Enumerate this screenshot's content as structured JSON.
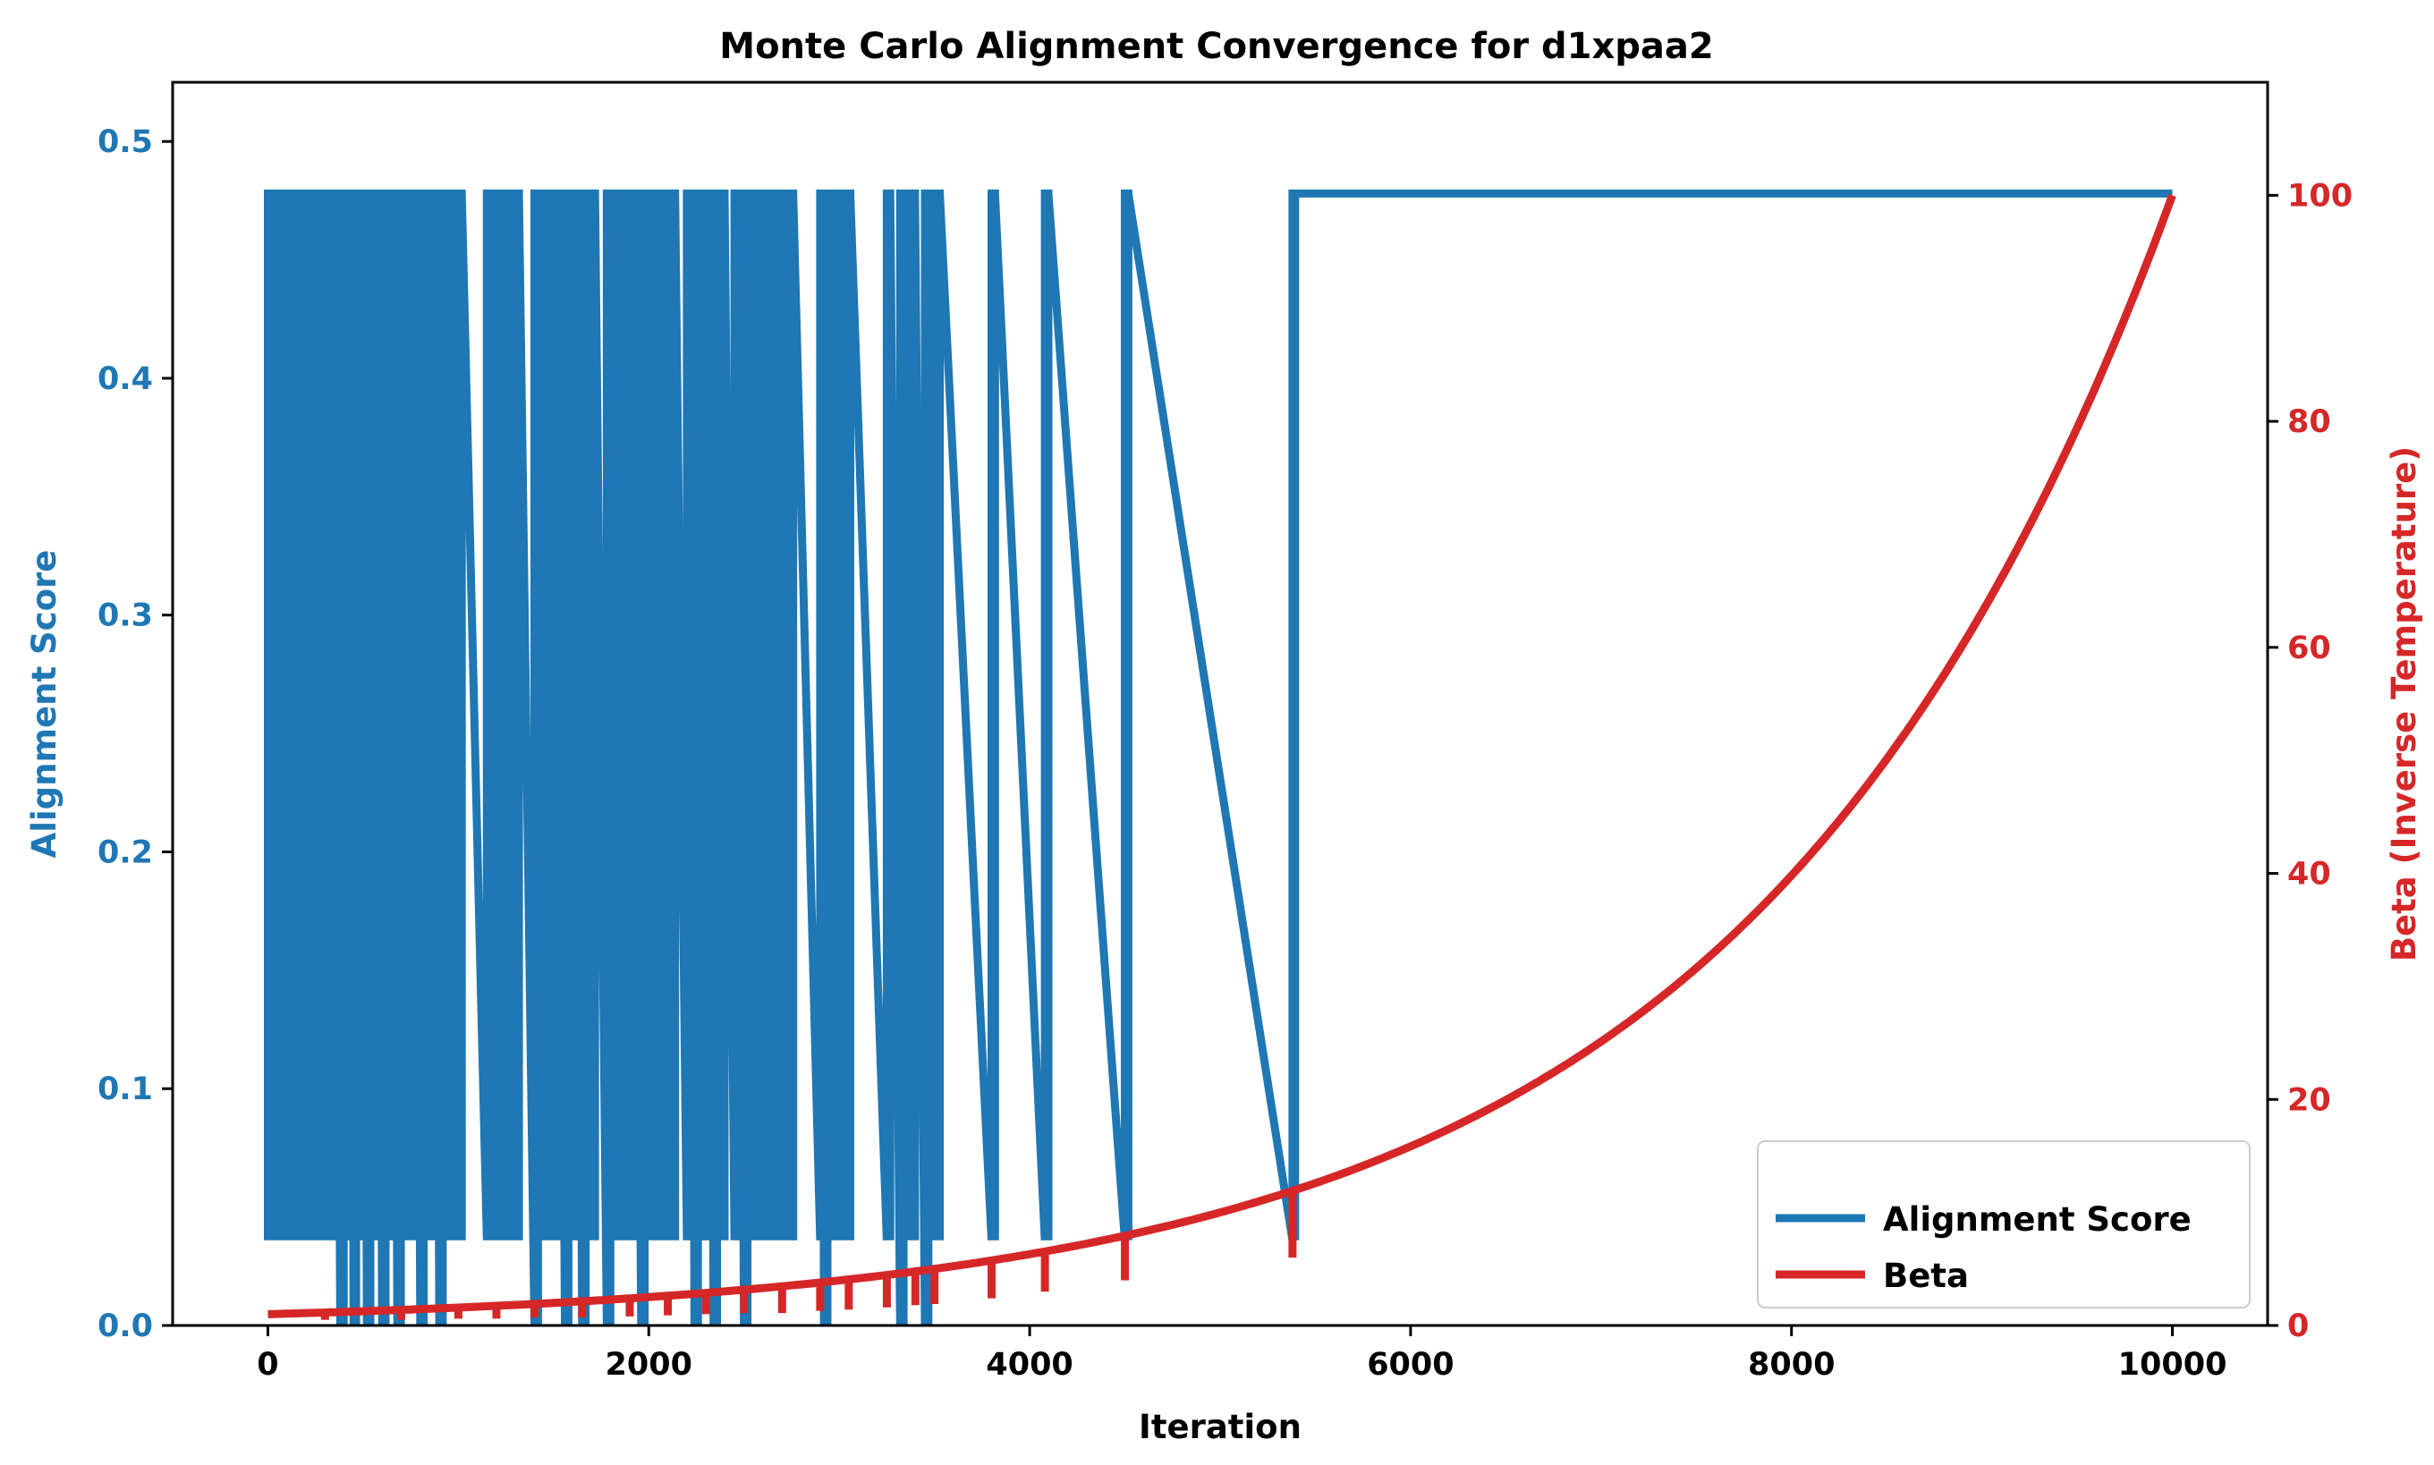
{
  "chart_data": {
    "type": "line",
    "title": "Monte Carlo Alignment Convergence for d1xpaa2",
    "xlabel": "Iteration",
    "ylabel": "Alignment Score",
    "y2label": "Beta (Inverse Temperature)",
    "xlim": [
      -500,
      10500
    ],
    "ylim": [
      0,
      0.525
    ],
    "y2lim": [
      0,
      110
    ],
    "xticks": [
      0,
      2000,
      4000,
      6000,
      8000,
      10000
    ],
    "yticks": [
      0.0,
      0.1,
      0.2,
      0.3,
      0.4,
      0.5
    ],
    "y2ticks": [
      0,
      20,
      40,
      60,
      80,
      100
    ],
    "legend_position": "lower-right",
    "colors": {
      "score": "#1f77b4",
      "beta": "#d62728",
      "axis": "#000000"
    },
    "series": [
      {
        "name": "Alignment Score",
        "axis": "left",
        "color": "#1f77b4",
        "baseline": 0.478,
        "drops": [
          [
            0,
            0.036
          ],
          [
            20,
            0.036
          ],
          [
            60,
            0.036
          ],
          [
            100,
            0.036
          ],
          [
            140,
            0.036
          ],
          [
            180,
            0.036
          ],
          [
            220,
            0.036
          ],
          [
            260,
            0.036
          ],
          [
            300,
            0.036
          ],
          [
            330,
            0.036
          ],
          [
            380,
            0.0
          ],
          [
            420,
            0.036
          ],
          [
            450,
            0.0
          ],
          [
            480,
            0.036
          ],
          [
            520,
            0.0
          ],
          [
            560,
            0.036
          ],
          [
            600,
            0.0
          ],
          [
            640,
            0.036
          ],
          [
            680,
            0.0
          ],
          [
            720,
            0.036
          ],
          [
            760,
            0.036
          ],
          [
            800,
            0.0
          ],
          [
            860,
            0.036
          ],
          [
            900,
            0.0
          ],
          [
            960,
            0.036
          ],
          [
            1000,
            0.036
          ],
          [
            1150,
            0.036
          ],
          [
            1200,
            0.036
          ],
          [
            1260,
            0.036
          ],
          [
            1300,
            0.036
          ],
          [
            1400,
            0.0
          ],
          [
            1440,
            0.036
          ],
          [
            1500,
            0.036
          ],
          [
            1560,
            0.0
          ],
          [
            1600,
            0.036
          ],
          [
            1650,
            0.0
          ],
          [
            1700,
            0.036
          ],
          [
            1780,
            0.0
          ],
          [
            1840,
            0.036
          ],
          [
            1900,
            0.036
          ],
          [
            1960,
            0.0
          ],
          [
            2000,
            0.036
          ],
          [
            2060,
            0.036
          ],
          [
            2120,
            0.036
          ],
          [
            2200,
            0.036
          ],
          [
            2240,
            0.0
          ],
          [
            2300,
            0.036
          ],
          [
            2340,
            0.0
          ],
          [
            2380,
            0.036
          ],
          [
            2450,
            0.036
          ],
          [
            2500,
            0.0
          ],
          [
            2560,
            0.036
          ],
          [
            2620,
            0.036
          ],
          [
            2680,
            0.036
          ],
          [
            2740,
            0.036
          ],
          [
            2900,
            0.036
          ],
          [
            2920,
            0.0
          ],
          [
            2980,
            0.036
          ],
          [
            3040,
            0.036
          ],
          [
            3250,
            0.036
          ],
          [
            3320,
            0.0
          ],
          [
            3380,
            0.036
          ],
          [
            3450,
            0.0
          ],
          [
            3510,
            0.036
          ],
          [
            3800,
            0.036
          ],
          [
            4080,
            0.036
          ],
          [
            4500,
            0.036
          ],
          [
            5380,
            0.036
          ]
        ]
      },
      {
        "name": "Beta",
        "axis": "right",
        "color": "#d62728",
        "curve": {
          "start_x": 0,
          "end_x": 10000,
          "start_y": 1,
          "end_y": 100,
          "form": "exponential"
        },
        "dips": [
          [
            300,
            0.5
          ],
          [
            700,
            0.5
          ],
          [
            1000,
            0.6
          ],
          [
            1200,
            0.6
          ],
          [
            1400,
            0.7
          ],
          [
            1650,
            0.7
          ],
          [
            1900,
            0.8
          ],
          [
            2100,
            0.9
          ],
          [
            2300,
            1.0
          ],
          [
            2500,
            1.1
          ],
          [
            2700,
            1.1
          ],
          [
            2900,
            1.3
          ],
          [
            3050,
            1.4
          ],
          [
            3250,
            1.6
          ],
          [
            3400,
            1.8
          ],
          [
            3500,
            1.9
          ],
          [
            3800,
            2.4
          ],
          [
            4080,
            3.0
          ],
          [
            4500,
            4.0
          ],
          [
            5380,
            6.0
          ]
        ]
      }
    ]
  }
}
